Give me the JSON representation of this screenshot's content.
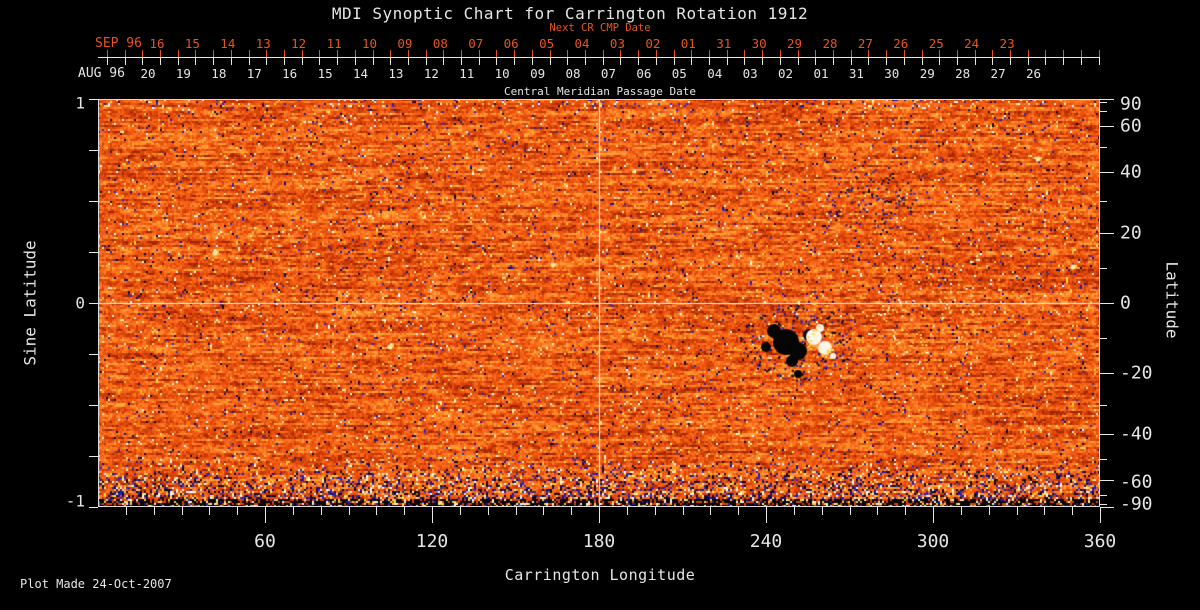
{
  "title": "MDI Synoptic Chart for Carrington Rotation 1912",
  "colors": {
    "background": "#000000",
    "text": "#e6e6e6",
    "red_axis": "#e8551c",
    "frame": "#dcdcdc",
    "magnetogram_base": "#e9520e",
    "negative_speckle": "#1c1ca8",
    "positive_speckle": "#ffd24a"
  },
  "top_axis": {
    "next_cr_label": "Next CR CMP Date",
    "next_month_label": "SEP 96",
    "next_dates": [
      "16",
      "15",
      "14",
      "13",
      "12",
      "11",
      "10",
      "09",
      "08",
      "07",
      "06",
      "05",
      "04",
      "03",
      "02",
      "01",
      "31",
      "30",
      "29",
      "28",
      "27",
      "26",
      "25",
      "24",
      "23"
    ],
    "month_label": "AUG 96",
    "dates": [
      "20",
      "19",
      "18",
      "17",
      "16",
      "15",
      "14",
      "13",
      "12",
      "11",
      "10",
      "09",
      "08",
      "07",
      "06",
      "05",
      "04",
      "03",
      "02",
      "01",
      "31",
      "30",
      "29",
      "28",
      "27",
      "26"
    ],
    "axis_title": "Central Meridian Passage Date"
  },
  "left_axis": {
    "title": "Sine Latitude",
    "tick_labels": [
      "1",
      "0",
      "-1"
    ],
    "tick_values": [
      1,
      0,
      -1
    ],
    "minor_tick_step": 0.25
  },
  "right_axis": {
    "title": "Latitude",
    "tick_labels": [
      "90",
      "60",
      "40",
      "20",
      "0",
      "-20",
      "-40",
      "-60",
      "-90"
    ],
    "tick_values_deg": [
      90,
      60,
      40,
      20,
      0,
      -20,
      -40,
      -60,
      -90
    ],
    "minor_tick_step_deg": 10
  },
  "bottom_axis": {
    "title": "Carrington Longitude",
    "tick_labels": [
      "60",
      "120",
      "180",
      "240",
      "300",
      "360"
    ],
    "tick_values": [
      60,
      120,
      180,
      240,
      300,
      360
    ],
    "minor_tick_step": 10
  },
  "footer": {
    "plot_made": "Plot Made 24-Oct-2007"
  },
  "chart_data": {
    "type": "heatmap",
    "title": "MDI Synoptic Chart for Carrington Rotation 1912",
    "xlabel": "Carrington Longitude",
    "ylabel_left": "Sine Latitude",
    "ylabel_right": "Latitude",
    "top_axis_label": "Central Meridian Passage Date",
    "top_axis_secondary_label": "Next CR CMP Date",
    "xlim": [
      0,
      360
    ],
    "ylim_sine_latitude": [
      -1,
      1
    ],
    "x_major_ticks": [
      60,
      120,
      180,
      240,
      300,
      360
    ],
    "right_axis_ticks_deg": [
      90,
      60,
      40,
      20,
      0,
      -20,
      -40,
      -60,
      -90
    ],
    "reference_lines": [
      "equator (latitude 0)",
      "longitude 180"
    ],
    "legend": "none",
    "grid": "off",
    "description": "Full-surface solar magnetic field synoptic map shown as dense mottled orange/red noise with scattered dark-blue, black, yellow and white speckles; horizontal streaks along the top edge and a dense multicolored speckle band fading to black along the bottom (south polar) edge.",
    "features": [
      {
        "name": "bipolar-active-region",
        "longitude_deg": 252,
        "latitude_deg": -10,
        "detail": "cluster of black negative-polarity patches ringed by dark-blue speckle next to bright white positive-polarity patches"
      },
      {
        "name": "dark-speckled-region",
        "longitude_deg": 277,
        "latitude_deg": 30,
        "detail": "enhanced dark-blue/black speckle patch"
      },
      {
        "name": "bright-network-region",
        "longitude_deg": 299,
        "latitude_deg": -5,
        "detail": "enhanced yellow/white bright network speckle"
      },
      {
        "name": "south-polar-noise-band",
        "latitude_range_deg": [
          -90,
          -60
        ],
        "detail": "dense blue/black/white/yellow noise fading to black at the pole"
      },
      {
        "name": "north-edge-streaks",
        "latitude_deg": 90,
        "detail": "thin horizontal streaky noise along top edge"
      }
    ]
  }
}
